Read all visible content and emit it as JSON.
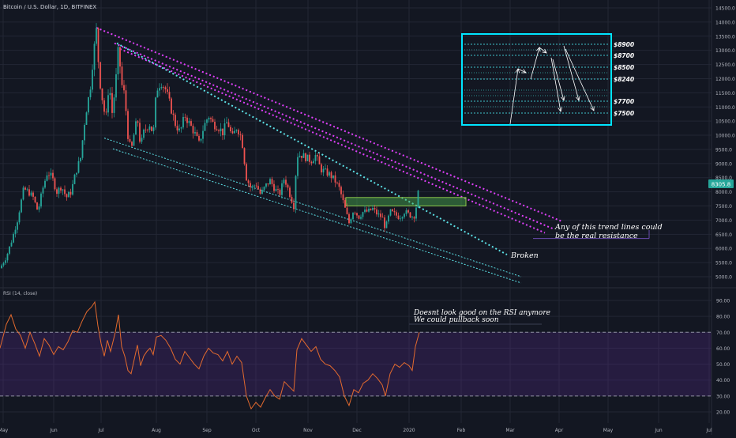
{
  "chart_data": [
    {
      "type": "candlestick",
      "title": "Bitcoin / U.S. Dollar, 1D, BITFINEX",
      "price_badge": "8305.8",
      "price_axis_ticks": [
        "14500.0",
        "14000.0",
        "13500.0",
        "13000.0",
        "12500.0",
        "12000.0",
        "11500.0",
        "11000.0",
        "10500.0",
        "10000.0",
        "9500.0",
        "9000.0",
        "8500.0",
        "8000.0",
        "7500.0",
        "7000.0",
        "6500.0",
        "6000.0",
        "5500.0",
        "5000.0"
      ],
      "price_axis_values": [
        14500,
        14000,
        13500,
        13000,
        12500,
        12000,
        11500,
        11000,
        10500,
        10000,
        9500,
        9000,
        8500,
        8000,
        7500,
        7000,
        6500,
        6000,
        5500,
        5000
      ],
      "x_labels": [
        "May",
        "Jun",
        "Jul",
        "Aug",
        "Sep",
        "Oct",
        "Nov",
        "Dec",
        "2020",
        "Feb",
        "Mar",
        "Apr",
        "May",
        "Jun",
        "Jul"
      ],
      "ylim": [
        4600,
        14900
      ],
      "up_color": "#26a69a",
      "down_color": "#ef5350",
      "close_path": [
        [
          0,
          5300
        ],
        [
          8,
          5700
        ],
        [
          15,
          6300
        ],
        [
          22,
          7000
        ],
        [
          30,
          8100
        ],
        [
          36,
          8000
        ],
        [
          42,
          7800
        ],
        [
          48,
          7300
        ],
        [
          54,
          8100
        ],
        [
          60,
          8700
        ],
        [
          66,
          8500
        ],
        [
          72,
          8000
        ],
        [
          78,
          8200
        ],
        [
          84,
          7800
        ],
        [
          90,
          8000
        ],
        [
          96,
          8700
        ],
        [
          102,
          9200
        ],
        [
          108,
          10700
        ],
        [
          114,
          11600
        ],
        [
          118,
          12800
        ],
        [
          122,
          13700
        ],
        [
          126,
          12000
        ],
        [
          130,
          11200
        ],
        [
          134,
          10500
        ],
        [
          138,
          11900
        ],
        [
          142,
          10800
        ],
        [
          146,
          11700
        ],
        [
          150,
          13100
        ],
        [
          154,
          11800
        ],
        [
          158,
          11400
        ],
        [
          162,
          10000
        ],
        [
          166,
          9400
        ],
        [
          170,
          10100
        ],
        [
          174,
          10600
        ],
        [
          178,
          9600
        ],
        [
          182,
          10100
        ],
        [
          186,
          10300
        ],
        [
          190,
          10400
        ],
        [
          194,
          10000
        ],
        [
          198,
          11600
        ],
        [
          204,
          11900
        ],
        [
          210,
          11600
        ],
        [
          216,
          11000
        ],
        [
          222,
          10400
        ],
        [
          228,
          10100
        ],
        [
          234,
          10700
        ],
        [
          240,
          10400
        ],
        [
          246,
          10100
        ],
        [
          252,
          9700
        ],
        [
          258,
          10300
        ],
        [
          264,
          10700
        ],
        [
          270,
          10400
        ],
        [
          276,
          10300
        ],
        [
          282,
          10100
        ],
        [
          288,
          10500
        ],
        [
          294,
          9900
        ],
        [
          300,
          10300
        ],
        [
          306,
          9900
        ],
        [
          312,
          8500
        ],
        [
          318,
          8100
        ],
        [
          324,
          8300
        ],
        [
          330,
          7900
        ],
        [
          336,
          8200
        ],
        [
          342,
          8400
        ],
        [
          348,
          8100
        ],
        [
          354,
          7900
        ],
        [
          360,
          8500
        ],
        [
          366,
          8000
        ],
        [
          372,
          7500
        ],
        [
          376,
          9300
        ],
        [
          382,
          9300
        ],
        [
          388,
          9200
        ],
        [
          394,
          9100
        ],
        [
          400,
          9300
        ],
        [
          406,
          8800
        ],
        [
          412,
          8700
        ],
        [
          418,
          8600
        ],
        [
          424,
          8400
        ],
        [
          430,
          8100
        ],
        [
          436,
          7500
        ],
        [
          442,
          6900
        ],
        [
          448,
          7400
        ],
        [
          454,
          7100
        ],
        [
          460,
          7300
        ],
        [
          466,
          7300
        ],
        [
          472,
          7400
        ],
        [
          478,
          7200
        ],
        [
          484,
          7100
        ],
        [
          488,
          6700
        ],
        [
          494,
          7300
        ],
        [
          500,
          7200
        ],
        [
          506,
          7100
        ],
        [
          512,
          7300
        ],
        [
          518,
          7200
        ],
        [
          524,
          7100
        ],
        [
          528,
          7600
        ],
        [
          531,
          8300
        ]
      ]
    },
    {
      "type": "line",
      "title": "RSI (14, close)",
      "axis_ticks": [
        "90.00",
        "80.00",
        "70.00",
        "60.00",
        "50.00",
        "40.00",
        "30.00",
        "20.00"
      ],
      "axis_values": [
        90,
        80,
        70,
        60,
        50,
        40,
        30,
        20
      ],
      "ylim": [
        15,
        95
      ],
      "band": [
        30,
        70
      ],
      "line_color": "#e36a2e",
      "band_color": "#5b2c8f",
      "rsi_path": [
        [
          0,
          60
        ],
        [
          8,
          75
        ],
        [
          14,
          81
        ],
        [
          20,
          72
        ],
        [
          26,
          68
        ],
        [
          32,
          60
        ],
        [
          38,
          70
        ],
        [
          44,
          63
        ],
        [
          50,
          55
        ],
        [
          56,
          66
        ],
        [
          62,
          62
        ],
        [
          68,
          56
        ],
        [
          74,
          61
        ],
        [
          80,
          59
        ],
        [
          86,
          64
        ],
        [
          92,
          71
        ],
        [
          98,
          70
        ],
        [
          104,
          77
        ],
        [
          110,
          83
        ],
        [
          116,
          86
        ],
        [
          120,
          89
        ],
        [
          124,
          74
        ],
        [
          128,
          63
        ],
        [
          132,
          55
        ],
        [
          136,
          65
        ],
        [
          140,
          58
        ],
        [
          146,
          70
        ],
        [
          150,
          81
        ],
        [
          154,
          61
        ],
        [
          158,
          55
        ],
        [
          162,
          46
        ],
        [
          166,
          44
        ],
        [
          170,
          53
        ],
        [
          174,
          62
        ],
        [
          178,
          49
        ],
        [
          182,
          55
        ],
        [
          186,
          58
        ],
        [
          190,
          60
        ],
        [
          194,
          56
        ],
        [
          198,
          67
        ],
        [
          204,
          68
        ],
        [
          210,
          65
        ],
        [
          216,
          60
        ],
        [
          222,
          53
        ],
        [
          228,
          50
        ],
        [
          234,
          58
        ],
        [
          240,
          54
        ],
        [
          246,
          50
        ],
        [
          252,
          47
        ],
        [
          258,
          55
        ],
        [
          264,
          60
        ],
        [
          270,
          57
        ],
        [
          276,
          56
        ],
        [
          282,
          52
        ],
        [
          288,
          58
        ],
        [
          294,
          50
        ],
        [
          300,
          55
        ],
        [
          306,
          51
        ],
        [
          312,
          30
        ],
        [
          318,
          22
        ],
        [
          324,
          26
        ],
        [
          330,
          23
        ],
        [
          336,
          29
        ],
        [
          342,
          34
        ],
        [
          348,
          30
        ],
        [
          354,
          28
        ],
        [
          360,
          39
        ],
        [
          366,
          36
        ],
        [
          372,
          33
        ],
        [
          376,
          59
        ],
        [
          382,
          66
        ],
        [
          388,
          62
        ],
        [
          394,
          58
        ],
        [
          400,
          61
        ],
        [
          406,
          53
        ],
        [
          412,
          50
        ],
        [
          418,
          49
        ],
        [
          424,
          46
        ],
        [
          430,
          42
        ],
        [
          436,
          30
        ],
        [
          442,
          24
        ],
        [
          448,
          34
        ],
        [
          454,
          32
        ],
        [
          460,
          38
        ],
        [
          466,
          40
        ],
        [
          472,
          44
        ],
        [
          478,
          41
        ],
        [
          484,
          37
        ],
        [
          488,
          30
        ],
        [
          494,
          44
        ],
        [
          500,
          50
        ],
        [
          506,
          48
        ],
        [
          512,
          51
        ],
        [
          518,
          49
        ],
        [
          522,
          46
        ],
        [
          526,
          61
        ],
        [
          531,
          70
        ]
      ]
    }
  ],
  "annotations": {
    "resistance": "Any of this trend lines could be the real resistance",
    "broken": "Broken",
    "rsi_note": "Doesnt look good on the RSI anymore We could pullback soon"
  },
  "levels": [
    {
      "label": "$8900",
      "price": 8900
    },
    {
      "label": "$8700",
      "price": 8700
    },
    {
      "label": "$8500",
      "price": 8500
    },
    {
      "label": "$8240",
      "price": 8240
    },
    {
      "label": "$7700",
      "price": 7700
    },
    {
      "label": "$7500",
      "price": 7500
    }
  ],
  "colors": {
    "background": "#131722",
    "grid": "#232734",
    "axis_text": "#b2b5be",
    "cyan": "#5ce1e6",
    "magenta": "#e040fb",
    "box": "#00e5ff",
    "zone": "#4caf50"
  }
}
